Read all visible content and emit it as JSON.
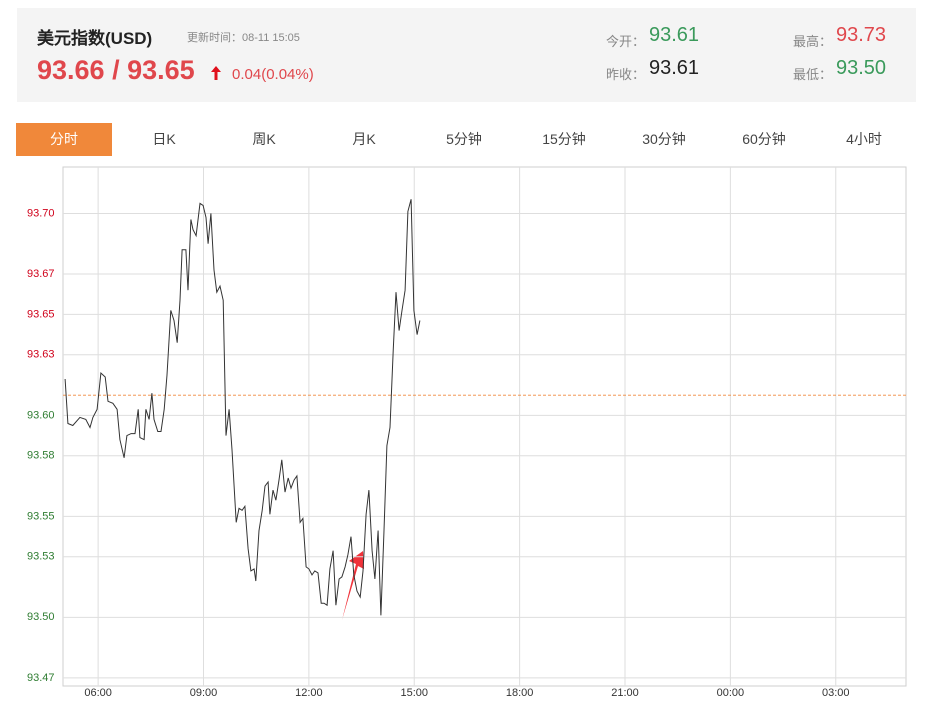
{
  "header": {
    "title": "美元指数(USD)",
    "update_time": "更新时间：08-11 15:05",
    "price": "93.66 / 93.65",
    "change": "0.04(0.04%)",
    "stats": [
      {
        "label": "今开：",
        "value": "93.61",
        "color": "#3a9a5b"
      },
      {
        "label": "最高：",
        "value": "93.73",
        "color": "#e0474c"
      },
      {
        "label": "昨收：",
        "value": "93.61",
        "color": "#222222"
      },
      {
        "label": "最低：",
        "value": "93.50",
        "color": "#3a9a5b"
      }
    ]
  },
  "tabs": {
    "items": [
      "分时",
      "日K",
      "周K",
      "月K",
      "5分钟",
      "15分钟",
      "30分钟",
      "60分钟",
      "4小时"
    ],
    "active": 0
  },
  "chart_data": {
    "type": "line",
    "color": "#333333",
    "reference_line": 93.61,
    "reference_color": "#f0883a",
    "up_color": "#d0021b",
    "down_color": "#2f7d32",
    "grid": true,
    "xlim": [
      5,
      29
    ],
    "ylim": [
      93.466,
      93.723
    ],
    "xticks": [
      {
        "value": 6,
        "label": "06:00"
      },
      {
        "value": 9,
        "label": "09:00"
      },
      {
        "value": 12,
        "label": "12:00"
      },
      {
        "value": 15,
        "label": "15:00"
      },
      {
        "value": 18,
        "label": "18:00"
      },
      {
        "value": 21,
        "label": "21:00"
      },
      {
        "value": 24,
        "label": "00:00"
      },
      {
        "value": 27,
        "label": "03:00"
      }
    ],
    "yticks": [
      {
        "value": 93.47,
        "label": "93.47"
      },
      {
        "value": 93.5,
        "label": "93.50"
      },
      {
        "value": 93.53,
        "label": "93.53"
      },
      {
        "value": 93.55,
        "label": "93.55"
      },
      {
        "value": 93.58,
        "label": "93.58"
      },
      {
        "value": 93.6,
        "label": "93.60"
      },
      {
        "value": 93.63,
        "label": "93.63"
      },
      {
        "value": 93.65,
        "label": "93.65"
      },
      {
        "value": 93.67,
        "label": "93.67"
      },
      {
        "value": 93.7,
        "label": "93.70"
      }
    ],
    "x": [
      5.06,
      5.14,
      5.28,
      5.48,
      5.65,
      5.77,
      5.85,
      5.97,
      6.08,
      6.2,
      6.28,
      6.42,
      6.54,
      6.62,
      6.74,
      6.82,
      6.94,
      7.05,
      7.14,
      7.19,
      7.31,
      7.36,
      7.45,
      7.53,
      7.59,
      7.7,
      7.79,
      7.88,
      7.96,
      8.07,
      8.16,
      8.25,
      8.33,
      8.39,
      8.5,
      8.56,
      8.64,
      8.7,
      8.79,
      8.9,
      8.99,
      9.07,
      9.13,
      9.21,
      9.3,
      9.38,
      9.47,
      9.56,
      9.64,
      9.73,
      9.81,
      9.93,
      10.01,
      10.1,
      10.18,
      10.27,
      10.35,
      10.44,
      10.49,
      10.58,
      10.67,
      10.75,
      10.84,
      10.89,
      10.98,
      11.06,
      11.15,
      11.23,
      11.32,
      11.41,
      11.49,
      11.58,
      11.66,
      11.75,
      11.83,
      11.92,
      12.0,
      12.09,
      12.17,
      12.26,
      12.35,
      12.43,
      12.52,
      12.6,
      12.69,
      12.77,
      12.86,
      12.94,
      13.03,
      13.11,
      13.2,
      13.28,
      13.37,
      13.46,
      13.54,
      13.63,
      13.71,
      13.8,
      13.88,
      13.97,
      14.05,
      14.14,
      14.22,
      14.31,
      14.4,
      14.48,
      14.57,
      14.65,
      14.74,
      14.82,
      14.91,
      14.99,
      15.08,
      15.16
    ],
    "values": [
      93.618,
      93.596,
      93.595,
      93.599,
      93.598,
      93.594,
      93.599,
      93.603,
      93.621,
      93.619,
      93.607,
      93.606,
      93.603,
      93.588,
      93.579,
      93.59,
      93.591,
      93.591,
      93.603,
      93.589,
      93.588,
      93.603,
      93.598,
      93.611,
      93.598,
      93.592,
      93.592,
      93.603,
      93.62,
      93.652,
      93.647,
      93.636,
      93.657,
      93.682,
      93.682,
      93.662,
      93.697,
      93.692,
      93.689,
      93.705,
      93.704,
      93.698,
      93.685,
      93.7,
      93.672,
      93.661,
      93.664,
      93.657,
      93.59,
      93.603,
      93.583,
      93.547,
      93.554,
      93.553,
      93.555,
      93.534,
      93.523,
      93.524,
      93.518,
      93.543,
      93.553,
      93.565,
      93.567,
      93.551,
      93.563,
      93.558,
      93.568,
      93.578,
      93.562,
      93.569,
      93.564,
      93.568,
      93.57,
      93.547,
      93.549,
      93.525,
      93.524,
      93.521,
      93.523,
      93.522,
      93.507,
      93.507,
      93.506,
      93.524,
      93.533,
      93.506,
      93.519,
      93.52,
      93.525,
      93.531,
      93.54,
      93.521,
      93.513,
      93.51,
      93.523,
      93.551,
      93.563,
      93.533,
      93.519,
      93.543,
      93.501,
      93.543,
      93.585,
      93.594,
      93.632,
      93.661,
      93.642,
      93.652,
      93.662,
      93.701,
      93.707,
      93.652,
      93.64,
      93.647
    ]
  }
}
